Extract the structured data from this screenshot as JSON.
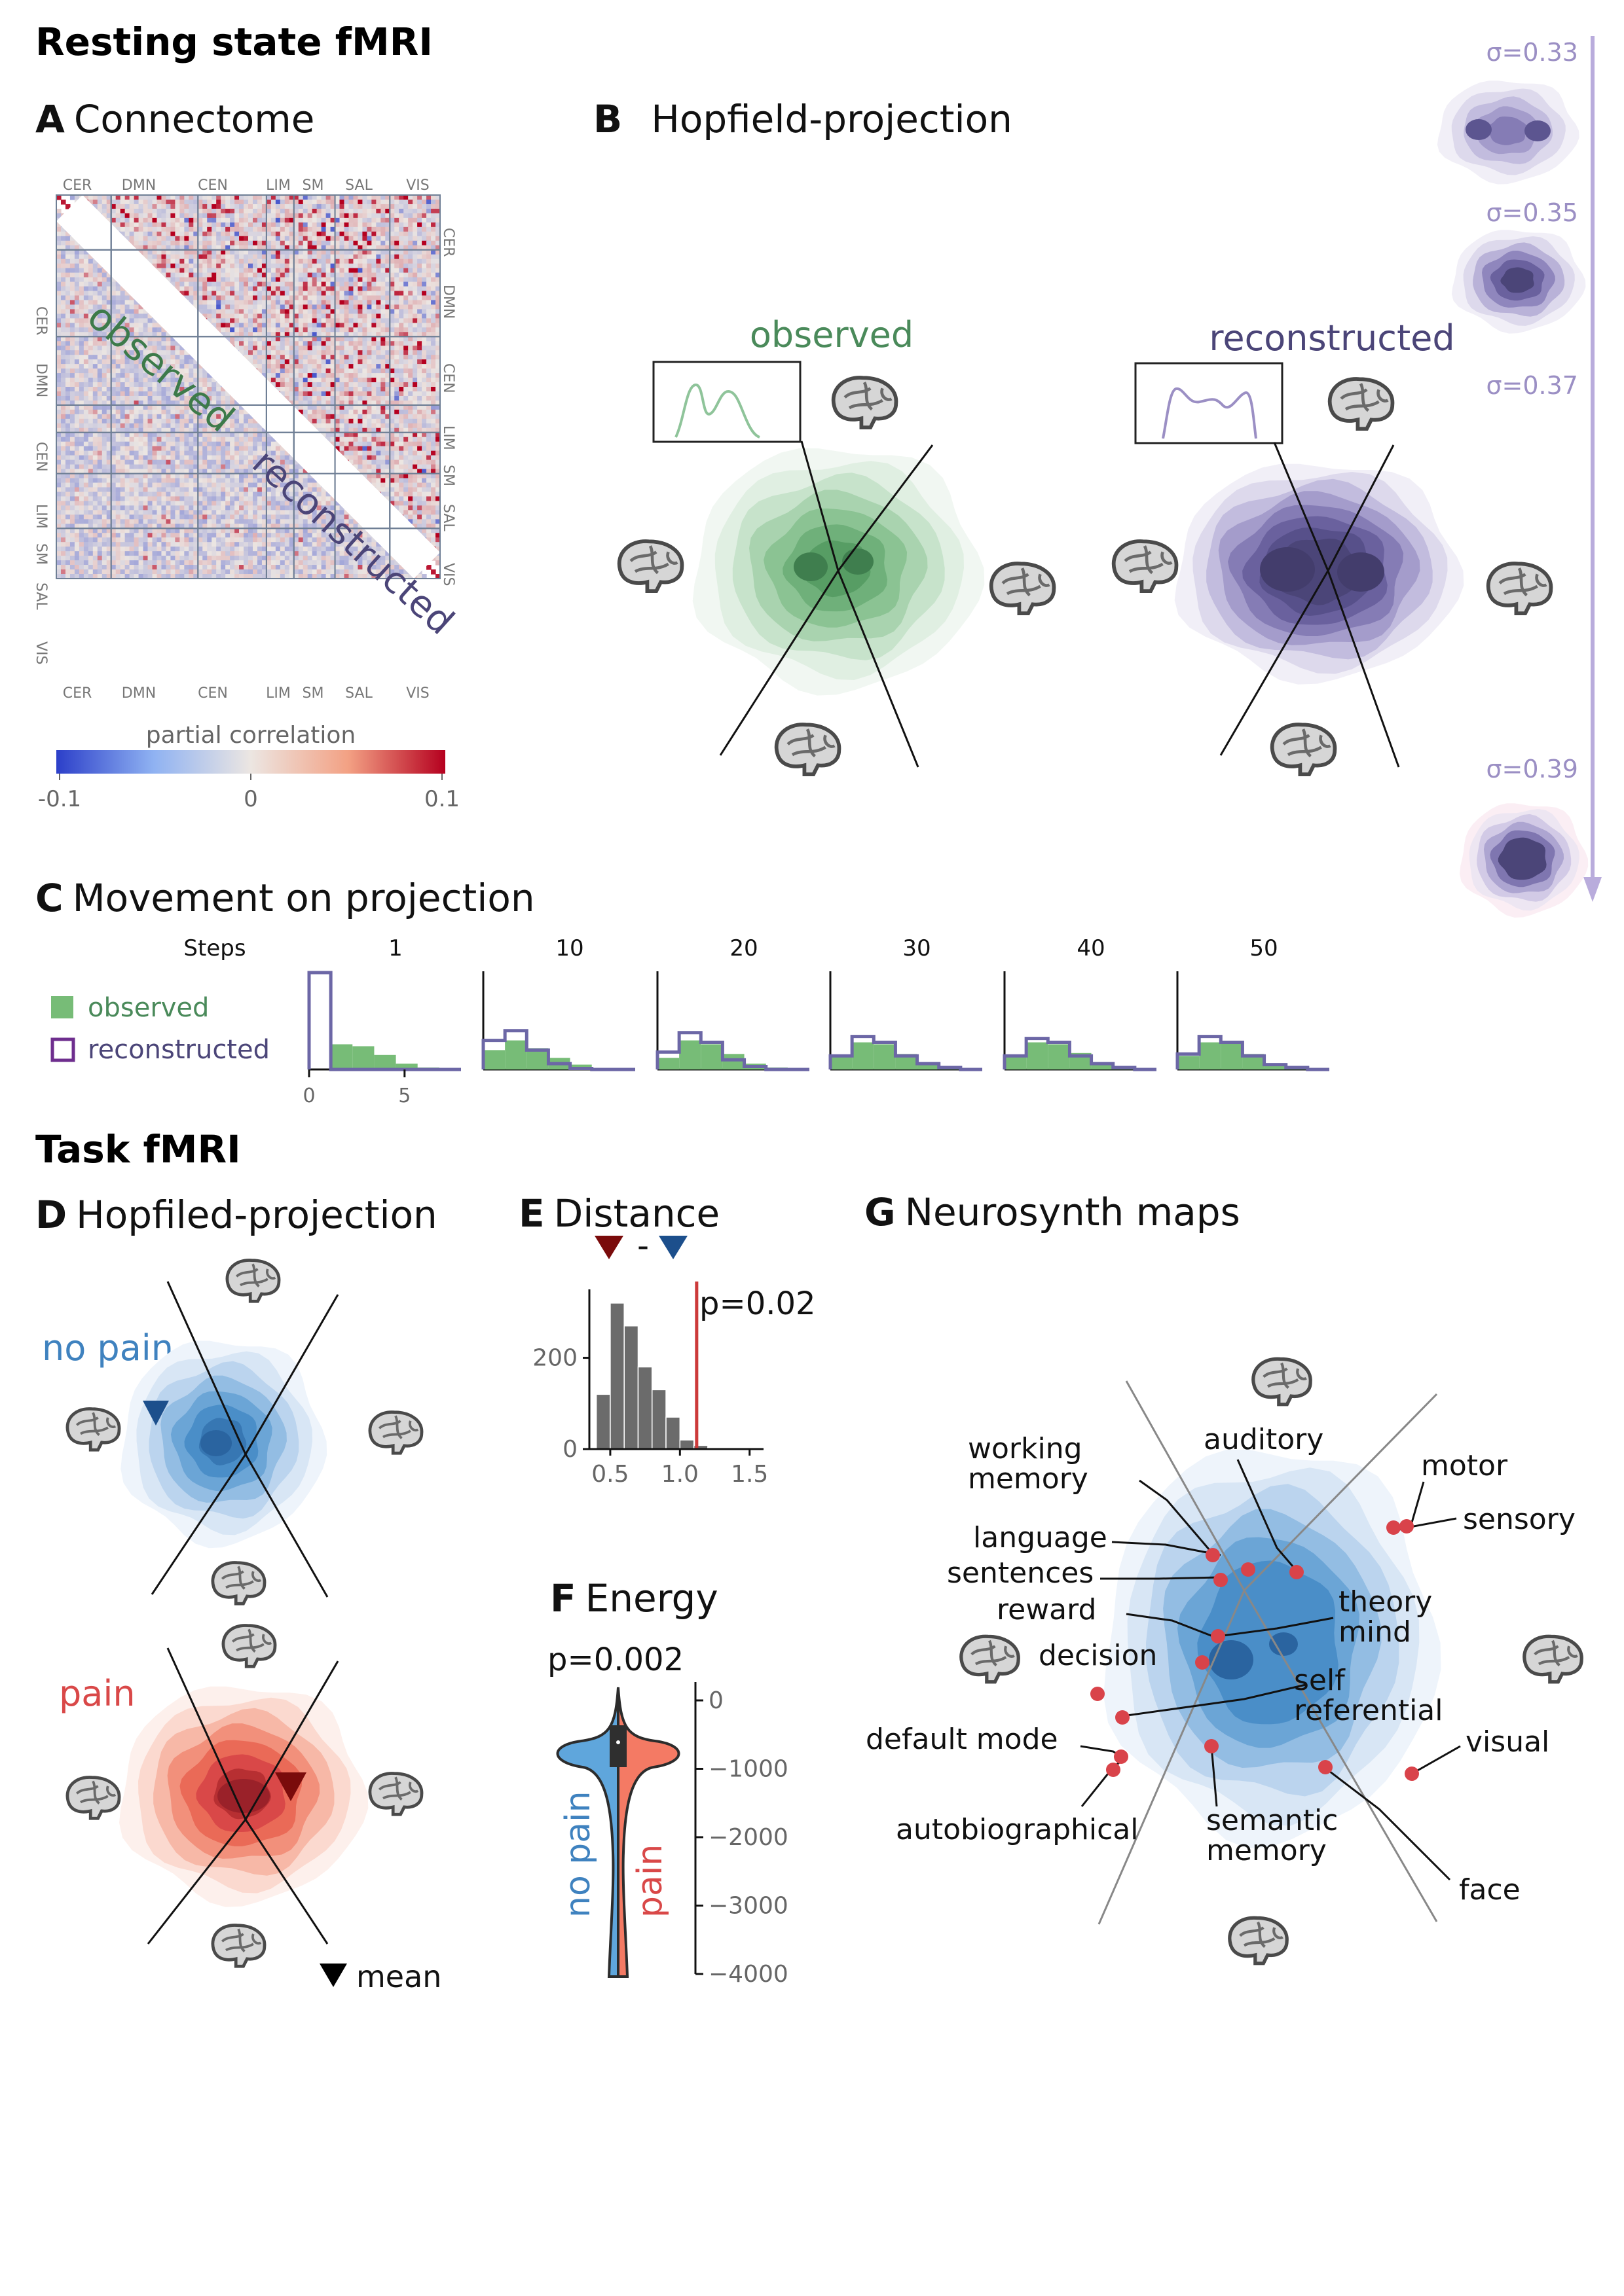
{
  "sections": {
    "resting": "Resting state fMRI",
    "task": "Task fMRI"
  },
  "panels": {
    "A": {
      "letter": "A",
      "title": "Connectome"
    },
    "B": {
      "letter": "B",
      "title": "Hopfield-projection"
    },
    "C": {
      "letter": "C",
      "title": "Movement on projection"
    },
    "D": {
      "letter": "D",
      "title": "Hopfiled-projection"
    },
    "E": {
      "letter": "E",
      "title": "Distance"
    },
    "F": {
      "letter": "F",
      "title": "Energy"
    },
    "G": {
      "letter": "G",
      "title": "Neurosynth maps"
    }
  },
  "connectome": {
    "networks": [
      "CER",
      "DMN",
      "CEN",
      "LIM",
      "SM",
      "SAL",
      "VIS"
    ],
    "upper_label": "observed",
    "lower_label": "reconstructed",
    "colorbar_label": "partial correlation",
    "colorbar_ticks": [
      "-0.1",
      "0",
      "0.1"
    ],
    "colors": {
      "neg": "#2c3fc9",
      "zero": "#ece6e2",
      "pos": "#b5001f"
    }
  },
  "projection": {
    "observed_label": "observed",
    "reconstructed_label": "reconstructed",
    "observed_color": "#4a8a5a",
    "reconstructed_color": "#4b4578"
  },
  "sigma": {
    "values": [
      "σ=0.33",
      "σ=0.35",
      "σ=0.37",
      "σ=0.39"
    ],
    "color": "#9b8fc4"
  },
  "movement": {
    "legend_observed": "observed",
    "legend_reconstructed": "reconstructed",
    "steps_label": "Steps",
    "x_ticks": [
      "0",
      "5"
    ],
    "chart_data": {
      "type": "bar",
      "steps": [
        "1",
        "10",
        "20",
        "30",
        "40",
        "50"
      ],
      "bins": [
        0,
        1,
        2,
        3,
        4,
        5,
        6,
        7
      ],
      "series": [
        {
          "name": "observed",
          "values": [
            [
              0.0,
              0.26,
              0.24,
              0.15,
              0.06,
              0.02,
              0.0
            ],
            [
              0.2,
              0.3,
              0.22,
              0.12,
              0.05,
              0.01,
              0.0
            ],
            [
              0.12,
              0.3,
              0.26,
              0.16,
              0.06,
              0.02,
              0.0
            ],
            [
              0.14,
              0.28,
              0.26,
              0.16,
              0.06,
              0.02,
              0.0
            ],
            [
              0.14,
              0.28,
              0.26,
              0.17,
              0.06,
              0.02,
              0.0
            ],
            [
              0.14,
              0.28,
              0.28,
              0.16,
              0.05,
              0.02,
              0.0
            ]
          ]
        },
        {
          "name": "reconstructed",
          "values": [
            [
              1.0,
              0.0,
              0.0,
              0.0,
              0.0,
              0.0,
              0.0
            ],
            [
              0.3,
              0.4,
              0.2,
              0.06,
              0.01,
              0.0,
              0.0
            ],
            [
              0.18,
              0.38,
              0.28,
              0.1,
              0.03,
              0.0,
              0.0
            ],
            [
              0.14,
              0.34,
              0.28,
              0.14,
              0.06,
              0.02,
              0.0
            ],
            [
              0.14,
              0.32,
              0.28,
              0.14,
              0.06,
              0.02,
              0.0
            ],
            [
              0.16,
              0.34,
              0.28,
              0.14,
              0.05,
              0.02,
              0.0
            ]
          ]
        }
      ]
    }
  },
  "task": {
    "no_pain_label": "no pain",
    "pain_label": "pain",
    "mean_label": "mean",
    "no_pain_color": "#3f82bf",
    "pain_color": "#d94848"
  },
  "distance": {
    "pvalue": "p=0.02",
    "dash": "-",
    "chart_data": {
      "type": "bar",
      "bin_edges": [
        0.4,
        0.5,
        0.6,
        0.7,
        0.8,
        0.9,
        1.0,
        1.1,
        1.2,
        1.3
      ],
      "values": [
        120,
        320,
        270,
        180,
        130,
        70,
        20,
        8,
        3
      ],
      "observed_line": 1.12,
      "x_ticks": [
        "0.5",
        "1.0",
        "1.5"
      ],
      "y_ticks": [
        "0",
        "200"
      ],
      "xlim": [
        0.35,
        1.6
      ],
      "ylim": [
        0,
        350
      ]
    }
  },
  "energy": {
    "pvalue": "p=0.002",
    "chart_data": {
      "type": "violin",
      "series": [
        {
          "name": "no pain"
        },
        {
          "name": "pain"
        }
      ],
      "y_ticks": [
        "0",
        "−1000",
        "−2000",
        "−3000",
        "−4000"
      ],
      "ylim": [
        -4000,
        0
      ]
    }
  },
  "neurosynth": {
    "labels": [
      "working memory",
      "auditory",
      "motor",
      "sensory",
      "language",
      "sentences",
      "reward",
      "theory mind",
      "decision",
      "self referential",
      "default mode",
      "visual",
      "autobiographical",
      "semantic memory",
      "face"
    ]
  }
}
